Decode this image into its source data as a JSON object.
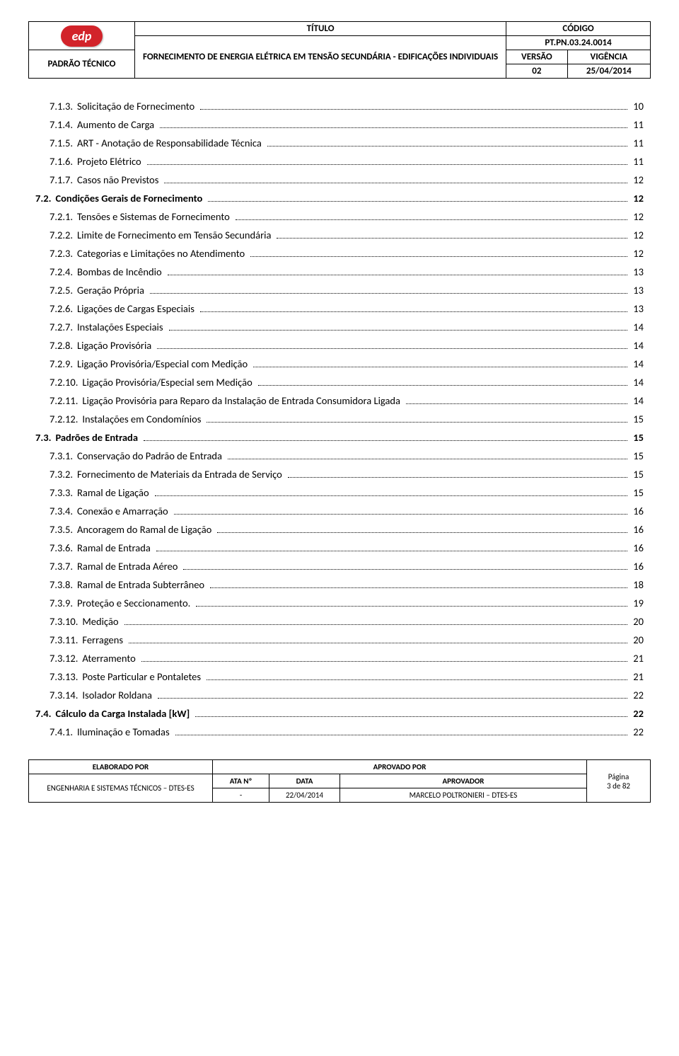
{
  "header": {
    "logo_text": "edp",
    "padrao": "PADRÃO TÉCNICO",
    "titulo_label": "TÍTULO",
    "codigo_label": "CÓDIGO",
    "title_main": "FORNECIMENTO DE ENERGIA ELÉTRICA EM TENSÃO SECUNDÁRIA - EDIFICAÇÕES INDIVIDUAIS",
    "codigo_val": "PT.PN.03.24.0014",
    "versao_label": "VERSÃO",
    "vigencia_label": "VIGÊNCIA",
    "versao_val": "02",
    "vigencia_val": "25/04/2014"
  },
  "toc": [
    {
      "num": "7.1.3.",
      "text": "Solicitação de Fornecimento",
      "page": "10",
      "indent": 1,
      "bold": false
    },
    {
      "num": "7.1.4.",
      "text": "Aumento de Carga",
      "page": "11",
      "indent": 1,
      "bold": false
    },
    {
      "num": "7.1.5.",
      "text": "ART - Anotação de Responsabilidade Técnica",
      "page": "11",
      "indent": 1,
      "bold": false
    },
    {
      "num": "7.1.6.",
      "text": "Projeto Elétrico",
      "page": "11",
      "indent": 1,
      "bold": false
    },
    {
      "num": "7.1.7.",
      "text": "Casos não Previstos",
      "page": "12",
      "indent": 1,
      "bold": false
    },
    {
      "num": "7.2.",
      "text": "Condições Gerais de Fornecimento",
      "page": "12",
      "indent": 0,
      "bold": true
    },
    {
      "num": "7.2.1.",
      "text": "Tensões e Sistemas de Fornecimento",
      "page": "12",
      "indent": 1,
      "bold": false
    },
    {
      "num": "7.2.2.",
      "text": "Limite de Fornecimento em Tensão Secundária",
      "page": "12",
      "indent": 1,
      "bold": false
    },
    {
      "num": "7.2.3.",
      "text": "Categorias e Limitações no Atendimento",
      "page": "12",
      "indent": 1,
      "bold": false
    },
    {
      "num": "7.2.4.",
      "text": "Bombas de Incêndio",
      "page": "13",
      "indent": 1,
      "bold": false
    },
    {
      "num": "7.2.5.",
      "text": "Geração Própria",
      "page": "13",
      "indent": 1,
      "bold": false
    },
    {
      "num": "7.2.6.",
      "text": "Ligações de Cargas Especiais",
      "page": "13",
      "indent": 1,
      "bold": false
    },
    {
      "num": "7.2.7.",
      "text": "Instalações Especiais",
      "page": "14",
      "indent": 1,
      "bold": false
    },
    {
      "num": "7.2.8.",
      "text": "Ligação Provisória",
      "page": "14",
      "indent": 1,
      "bold": false
    },
    {
      "num": "7.2.9.",
      "text": "Ligação Provisória/Especial com Medição",
      "page": "14",
      "indent": 1,
      "bold": false
    },
    {
      "num": "7.2.10.",
      "text": "Ligação Provisória/Especial sem Medição",
      "page": "14",
      "indent": 1,
      "bold": false
    },
    {
      "num": "7.2.11.",
      "text": "Ligação Provisória para Reparo da Instalação de Entrada Consumidora Ligada",
      "page": "14",
      "indent": 1,
      "bold": false
    },
    {
      "num": "7.2.12.",
      "text": "Instalações em Condomínios",
      "page": "15",
      "indent": 1,
      "bold": false
    },
    {
      "num": "7.3.",
      "text": "Padrões de Entrada",
      "page": "15",
      "indent": 0,
      "bold": true
    },
    {
      "num": "7.3.1.",
      "text": "Conservação do Padrão de Entrada",
      "page": "15",
      "indent": 1,
      "bold": false
    },
    {
      "num": "7.3.2.",
      "text": "Fornecimento de Materiais da Entrada de Serviço",
      "page": "15",
      "indent": 1,
      "bold": false
    },
    {
      "num": "7.3.3.",
      "text": "Ramal de Ligação",
      "page": "15",
      "indent": 1,
      "bold": false
    },
    {
      "num": "7.3.4.",
      "text": "Conexão e Amarração",
      "page": "16",
      "indent": 1,
      "bold": false
    },
    {
      "num": "7.3.5.",
      "text": "Ancoragem do Ramal de Ligação",
      "page": "16",
      "indent": 1,
      "bold": false
    },
    {
      "num": "7.3.6.",
      "text": "Ramal de Entrada",
      "page": "16",
      "indent": 1,
      "bold": false
    },
    {
      "num": "7.3.7.",
      "text": "Ramal de Entrada Aéreo",
      "page": "16",
      "indent": 1,
      "bold": false
    },
    {
      "num": "7.3.8.",
      "text": "Ramal de Entrada Subterrâneo",
      "page": "18",
      "indent": 1,
      "bold": false
    },
    {
      "num": "7.3.9.",
      "text": "Proteção e Seccionamento.",
      "page": "19",
      "indent": 1,
      "bold": false
    },
    {
      "num": "7.3.10.",
      "text": "Medição",
      "page": "20",
      "indent": 1,
      "bold": false
    },
    {
      "num": "7.3.11.",
      "text": "Ferragens",
      "page": "20",
      "indent": 1,
      "bold": false
    },
    {
      "num": "7.3.12.",
      "text": "Aterramento",
      "page": "21",
      "indent": 1,
      "bold": false
    },
    {
      "num": "7.3.13.",
      "text": "Poste Particular e Pontaletes",
      "page": "21",
      "indent": 1,
      "bold": false
    },
    {
      "num": "7.3.14.",
      "text": "Isolador Roldana",
      "page": "22",
      "indent": 1,
      "bold": false
    },
    {
      "num": "7.4.",
      "text": "Cálculo da Carga Instalada [kW]",
      "page": "22",
      "indent": 0,
      "bold": true
    },
    {
      "num": "7.4.1.",
      "text": "Iluminação e Tomadas",
      "page": "22",
      "indent": 1,
      "bold": false
    }
  ],
  "footer": {
    "elaborado_label": "ELABORADO POR",
    "aprovado_label": "APROVADO POR",
    "pagina_label": "Página",
    "ata_label": "ATA Nº",
    "data_label": "DATA",
    "aprovador_label": "APROVADOR",
    "elaborado_val": "ENGENHARIA E SISTEMAS TÉCNICOS – DTES-ES",
    "ata_val": "-",
    "data_val": "22/04/2014",
    "aprovador_val": "MARCELO POLTRONIERI – DTES-ES",
    "pagina_val": "3 de 82"
  }
}
